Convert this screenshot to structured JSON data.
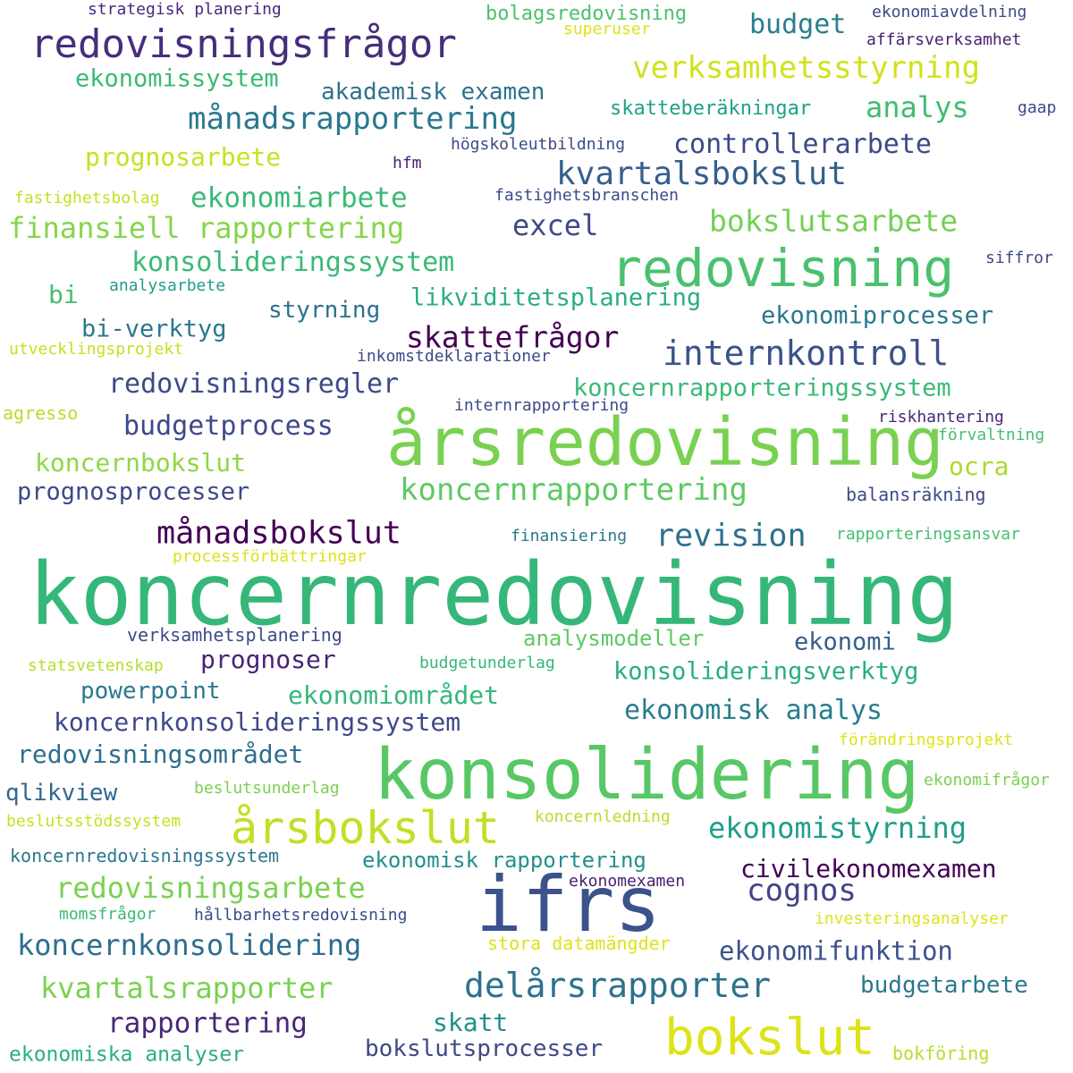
{
  "words": [
    {
      "text": "koncernredovisning",
      "color": "#35b779"
    },
    {
      "text": "konsolidering",
      "color": "#58c765"
    },
    {
      "text": "ifrs",
      "color": "#3b528b"
    },
    {
      "text": "årsredovisning",
      "color": "#7ad151"
    },
    {
      "text": "redovisning",
      "color": "#4ac16d"
    },
    {
      "text": "bokslut",
      "color": "#dde318"
    },
    {
      "text": "årsbokslut",
      "color": "#c2df23"
    },
    {
      "text": "redovisningsfrågor",
      "color": "#472d7b"
    },
    {
      "text": "kvartalsbokslut",
      "color": "#355f8d"
    },
    {
      "text": "internkontroll",
      "color": "#3b528b"
    },
    {
      "text": "koncernrapportering",
      "color": "#5ec962"
    },
    {
      "text": "månadsrapportering",
      "color": "#2a788e"
    },
    {
      "text": "verksamhetsstyrning",
      "color": "#d2e21b"
    },
    {
      "text": "bokslutsarbete",
      "color": "#75d054"
    },
    {
      "text": "delårsrapporter",
      "color": "#2c728e"
    },
    {
      "text": "koncernkonsolidering",
      "color": "#2e6e8e"
    },
    {
      "text": "finansiell rapportering",
      "color": "#86d549"
    },
    {
      "text": "konsolideringssystem",
      "color": "#3aba76"
    },
    {
      "text": "redovisningsarbete",
      "color": "#7ad151"
    },
    {
      "text": "kvartalsrapporter",
      "color": "#7ad151"
    },
    {
      "text": "ekonomistyrning",
      "color": "#1f9e89"
    },
    {
      "text": "månadsbokslut",
      "color": "#440154"
    },
    {
      "text": "revision",
      "color": "#2d708e"
    },
    {
      "text": "ekonomiarbete",
      "color": "#3aba76"
    },
    {
      "text": "controllerarbete",
      "color": "#3e4989"
    },
    {
      "text": "redovisningsregler",
      "color": "#3e4989"
    },
    {
      "text": "budgetprocess",
      "color": "#3e4989"
    },
    {
      "text": "rapportering",
      "color": "#482878"
    },
    {
      "text": "cognos",
      "color": "#414487"
    },
    {
      "text": "analys",
      "color": "#3fbc73"
    },
    {
      "text": "skattefrågor",
      "color": "#440154"
    },
    {
      "text": "civilekonomexamen",
      "color": "#440154"
    },
    {
      "text": "koncernkonsolideringssystem",
      "color": "#3e4989"
    },
    {
      "text": "ekonomisk analys",
      "color": "#287d8e"
    },
    {
      "text": "koncernrapporteringssystem",
      "color": "#3aba76"
    },
    {
      "text": "konsolideringsverktyg",
      "color": "#29af7f"
    },
    {
      "text": "ekonomifunktion",
      "color": "#3b528b"
    },
    {
      "text": "budgetarbete",
      "color": "#2a788e"
    },
    {
      "text": "prognosarbete",
      "color": "#c8e020"
    },
    {
      "text": "budget",
      "color": "#277f8e"
    },
    {
      "text": "excel",
      "color": "#3e4989"
    },
    {
      "text": "likviditetsplanering",
      "color": "#29af7f"
    },
    {
      "text": "ekonomiprocesser",
      "color": "#2a788e"
    },
    {
      "text": "prognosprocesser",
      "color": "#3e4989"
    },
    {
      "text": "koncernbokslut",
      "color": "#8fd744"
    },
    {
      "text": "ocra",
      "color": "#a8db34"
    },
    {
      "text": "analysmodeller",
      "color": "#5ec962"
    },
    {
      "text": "prognoser",
      "color": "#482475"
    },
    {
      "text": "ekonomi",
      "color": "#355f8d"
    },
    {
      "text": "powerpoint",
      "color": "#2a788e"
    },
    {
      "text": "ekonomiområdet",
      "color": "#35b779"
    },
    {
      "text": "redovisningsområdet",
      "color": "#2e6e8e"
    },
    {
      "text": "qlikview",
      "color": "#31688e"
    },
    {
      "text": "skatt",
      "color": "#21908d"
    },
    {
      "text": "bokslutsprocesser",
      "color": "#3e4989"
    },
    {
      "text": "ekonomiska analyser",
      "color": "#29af7f"
    },
    {
      "text": "ekonomissystem",
      "color": "#3aba76"
    },
    {
      "text": "akademisk examen",
      "color": "#2c728e"
    },
    {
      "text": "styrning",
      "color": "#2d708e"
    },
    {
      "text": "bi-verktyg",
      "color": "#2a788e"
    },
    {
      "text": "bi",
      "color": "#44bf70"
    },
    {
      "text": "bolagsredovisning",
      "color": "#4ac16d"
    },
    {
      "text": "skatteberäkningar",
      "color": "#1fa188"
    },
    {
      "text": "ekonomisk rapportering",
      "color": "#21918c"
    },
    {
      "text": "strategisk planering",
      "color": "#482878"
    },
    {
      "text": "ekonomiavdelning",
      "color": "#3e4989"
    },
    {
      "text": "affärsverksamhet",
      "color": "#481f70"
    },
    {
      "text": "superuser",
      "color": "#dde318"
    },
    {
      "text": "gaap",
      "color": "#3e4989"
    },
    {
      "text": "högskoleutbildning",
      "color": "#3e4989"
    },
    {
      "text": "hfm",
      "color": "#481f70"
    },
    {
      "text": "fastighetsbolag",
      "color": "#c8e020"
    },
    {
      "text": "fastighetsbranschen",
      "color": "#3e4989"
    },
    {
      "text": "siffror",
      "color": "#3e4989"
    },
    {
      "text": "analysarbete",
      "color": "#1f9e89"
    },
    {
      "text": "utvecklingsprojekt",
      "color": "#c8e020"
    },
    {
      "text": "inkomstdeklarationer",
      "color": "#3e4989"
    },
    {
      "text": "internrapportering",
      "color": "#3e4989"
    },
    {
      "text": "agresso",
      "color": "#b5de2b"
    },
    {
      "text": "riskhantering",
      "color": "#482878"
    },
    {
      "text": "förvaltning",
      "color": "#44bf70"
    },
    {
      "text": "balansräkning",
      "color": "#3e4989"
    },
    {
      "text": "finansiering",
      "color": "#2a788e"
    },
    {
      "text": "rapporteringsansvar",
      "color": "#44bf70"
    },
    {
      "text": "processförbättringar",
      "color": "#dde318"
    },
    {
      "text": "verksamhetsplanering",
      "color": "#3e4989"
    },
    {
      "text": "statsvetenskap",
      "color": "#b5de2b"
    },
    {
      "text": "budgetunderlag",
      "color": "#35b779"
    },
    {
      "text": "förändringsprojekt",
      "color": "#dde318"
    },
    {
      "text": "beslutsunderlag",
      "color": "#7ad151"
    },
    {
      "text": "ekonomifrågor",
      "color": "#7ad151"
    },
    {
      "text": "beslutsstödssystem",
      "color": "#c8e020"
    },
    {
      "text": "koncernledning",
      "color": "#b5de2b"
    },
    {
      "text": "koncernredovisningssystem",
      "color": "#2a788e"
    },
    {
      "text": "ekonomexamen",
      "color": "#481f70"
    },
    {
      "text": "momsfrågor",
      "color": "#3aba76"
    },
    {
      "text": "hållbarhetsredovisning",
      "color": "#3e4989"
    },
    {
      "text": "investeringsanalyser",
      "color": "#dde318"
    },
    {
      "text": "stora datamängder",
      "color": "#dde318"
    },
    {
      "text": "bokföring",
      "color": "#b5de2b"
    }
  ]
}
